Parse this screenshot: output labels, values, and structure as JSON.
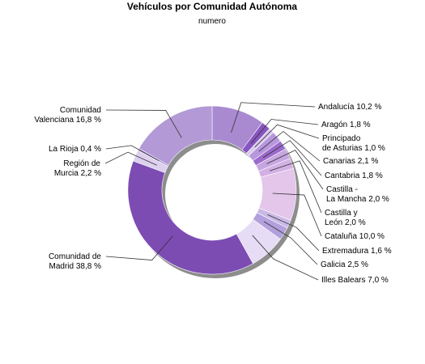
{
  "chart_data": {
    "type": "pie",
    "variant": "donut",
    "title": "Vehículos por Comunidad Autónoma",
    "subtitle": "numero",
    "slices": [
      {
        "label": "Andalucía 10,2 %",
        "value": 10.2,
        "color": "#a98ad0"
      },
      {
        "label": "Aragón 1,8 %",
        "value": 1.8,
        "color": "#8856c1"
      },
      {
        "label": "Principado de Asturias 1,0 %",
        "value": 1.0,
        "color": "#d9c8ee"
      },
      {
        "label": "Canarias 2,1 %",
        "value": 2.1,
        "color": "#b797dd"
      },
      {
        "label": "Cantabria 1,8 %",
        "value": 1.8,
        "color": "#9b6acb"
      },
      {
        "label": "Castilla - La Mancha 2,0 %",
        "value": 2.0,
        "color": "#c6a6e0"
      },
      {
        "label": "Castilla y León 2,0 %",
        "value": 2.0,
        "color": "#d3b0e3"
      },
      {
        "label": "Cataluña 10,0 %",
        "value": 10.0,
        "color": "#e3c6ea"
      },
      {
        "label": "Extremadura 1,6 %",
        "value": 1.6,
        "color": "#cab8e6"
      },
      {
        "label": "Galicia 2,5 %",
        "value": 2.5,
        "color": "#b2a0dc"
      },
      {
        "label": "Illes Balears 7,0 %",
        "value": 7.0,
        "color": "#e6dcf5"
      },
      {
        "label": "Comunidad de Madrid 38,8 %",
        "value": 38.8,
        "color": "#7c4cb3"
      },
      {
        "label": "Región de Murcia 2,2 %",
        "value": 2.2,
        "color": "#ddd0ef"
      },
      {
        "label": "La Rioja 0,4 %",
        "value": 0.4,
        "color": "#9e86c8"
      },
      {
        "label": "Comunidad Valenciana 16,8 %",
        "value": 16.8,
        "color": "#b39ad6"
      }
    ],
    "legend": "none"
  }
}
